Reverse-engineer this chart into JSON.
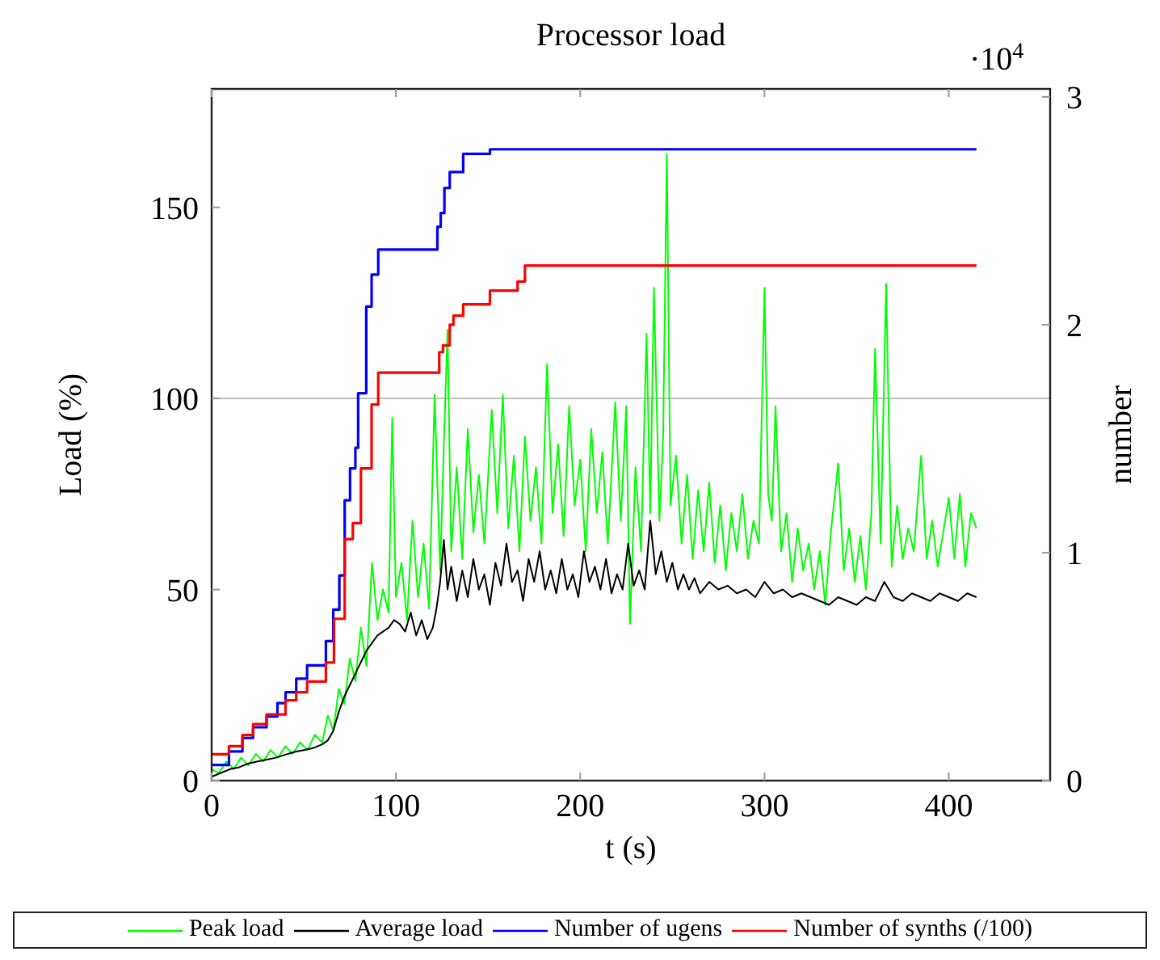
{
  "chart_data": {
    "type": "line",
    "title": "Processor load",
    "xlabel": "t (s)",
    "ylabel": "Load (%)",
    "y2label": "number",
    "annotations": [
      "·10$^{4}$"
    ],
    "xlim": [
      0,
      455
    ],
    "xticks": [
      0,
      100,
      200,
      300,
      400
    ],
    "ylim": [
      0,
      181
    ],
    "yticks": [
      0,
      50,
      100,
      150
    ],
    "y2lim": [
      0,
      3.035
    ],
    "y2ticks": [
      0,
      1,
      2,
      3
    ],
    "grid": false,
    "legend": "bottom",
    "marker": "none",
    "line_style": "solid",
    "ref_lines": [
      {
        "axis": "y",
        "value": 100,
        "label": null,
        "color": "#bfbfbf"
      }
    ],
    "series": [
      {
        "name": "Peak load",
        "color": "#00ff00",
        "x": [
          0,
          4,
          8,
          12,
          16,
          20,
          24,
          28,
          32,
          36,
          40,
          44,
          48,
          52,
          56,
          60,
          63,
          66,
          69,
          72,
          75,
          78,
          81,
          84,
          87,
          90,
          93,
          96,
          98,
          100,
          103,
          106,
          109,
          112,
          115,
          118,
          121,
          124,
          126,
          128,
          130,
          133,
          136,
          139,
          142,
          145,
          148,
          152,
          155,
          158,
          161,
          164,
          167,
          170,
          173,
          176,
          179,
          182,
          185,
          188,
          191,
          194,
          197,
          200,
          203,
          206,
          209,
          212,
          215,
          219,
          222,
          225,
          227,
          230,
          233,
          236,
          238,
          240,
          243,
          245,
          247,
          249,
          252,
          255,
          258,
          261,
          264,
          267,
          270,
          273,
          276,
          279,
          282,
          285,
          288,
          291,
          294,
          297,
          300,
          302,
          304,
          306,
          309,
          312,
          315,
          318,
          321,
          324,
          327,
          330,
          333,
          336,
          340,
          343,
          346,
          349,
          352,
          355,
          358,
          360,
          363,
          366,
          369,
          372,
          375,
          378,
          381,
          385,
          388,
          391,
          394,
          400,
          403,
          406,
          409,
          412,
          415
        ],
        "values": [
          3,
          2,
          5,
          3,
          6,
          4,
          7,
          5,
          8,
          6,
          9,
          7,
          10,
          8,
          12,
          10,
          17,
          13,
          24,
          20,
          32,
          26,
          40,
          30,
          57,
          42,
          50,
          44,
          95,
          48,
          57,
          42,
          68,
          48,
          62,
          45,
          101,
          55,
          88,
          118,
          60,
          82,
          58,
          92,
          65,
          80,
          62,
          97,
          70,
          101,
          66,
          85,
          60,
          90,
          68,
          82,
          62,
          109,
          70,
          88,
          64,
          98,
          72,
          84,
          60,
          92,
          70,
          86,
          62,
          99,
          68,
          98,
          41,
          82,
          60,
          117,
          70,
          129,
          68,
          90,
          164,
          72,
          85,
          62,
          80,
          58,
          76,
          60,
          78,
          57,
          72,
          55,
          70,
          60,
          75,
          58,
          68,
          62,
          129,
          75,
          68,
          98,
          60,
          70,
          52,
          66,
          55,
          62,
          50,
          60,
          46,
          65,
          83,
          55,
          66,
          52,
          64,
          50,
          70,
          113,
          62,
          130,
          56,
          72,
          58,
          66,
          60,
          85,
          58,
          68,
          56,
          74,
          58,
          75,
          56,
          70,
          66
        ]
      },
      {
        "name": "Average load",
        "color": "#000000",
        "x": [
          0,
          5,
          10,
          15,
          20,
          25,
          30,
          35,
          40,
          45,
          50,
          55,
          60,
          63,
          66,
          69,
          72,
          75,
          78,
          81,
          84,
          87,
          90,
          93,
          96,
          99,
          102,
          105,
          108,
          111,
          114,
          117,
          120,
          122,
          124,
          126,
          128,
          130,
          133,
          136,
          139,
          142,
          145,
          148,
          151,
          154,
          157,
          160,
          163,
          166,
          169,
          172,
          175,
          178,
          181,
          184,
          187,
          190,
          193,
          196,
          199,
          202,
          205,
          208,
          211,
          214,
          217,
          220,
          223,
          226,
          229,
          232,
          235,
          238,
          241,
          244,
          247,
          250,
          253,
          256,
          259,
          262,
          265,
          270,
          275,
          280,
          285,
          290,
          295,
          300,
          305,
          310,
          315,
          320,
          325,
          330,
          335,
          340,
          345,
          350,
          355,
          360,
          365,
          370,
          375,
          380,
          385,
          390,
          395,
          400,
          405,
          410,
          415
        ],
        "values": [
          1,
          2,
          3,
          3.5,
          4.5,
          5,
          5.5,
          6,
          6.8,
          7.5,
          8,
          8.5,
          9.5,
          10.5,
          13,
          18,
          22,
          25,
          28,
          31,
          34,
          36,
          38,
          39,
          40,
          42,
          41,
          39,
          44,
          38,
          42,
          37,
          40,
          45,
          52,
          63,
          50,
          56,
          47,
          55,
          48,
          58,
          50,
          54,
          46,
          57,
          51,
          62,
          52,
          55,
          47,
          58,
          52,
          60,
          50,
          55,
          49,
          58,
          50,
          54,
          48,
          60,
          52,
          56,
          50,
          58,
          49,
          54,
          50,
          62,
          51,
          55,
          50,
          68,
          54,
          60,
          52,
          57,
          50,
          54,
          50,
          53,
          49,
          52,
          50,
          51,
          49,
          50,
          48,
          52,
          49,
          50,
          48,
          49,
          48,
          47,
          46,
          48,
          47,
          46,
          48,
          47,
          52,
          48,
          47,
          49,
          48,
          47,
          49,
          48,
          47,
          49,
          48
        ]
      },
      {
        "name": "Number of ugens",
        "color": "#0000ff",
        "type": "step",
        "axis": "y2",
        "x": [
          0,
          9.4,
          16.7,
          22.5,
          29.8,
          35.7,
          40.1,
          45.9,
          51.8,
          62,
          66,
          69.3,
          72.2,
          75.1,
          78,
          79.5,
          83.9,
          86.8,
          90.4,
          122.5,
          124.3,
          126.3,
          129.2,
          136.5,
          151,
          166,
          170,
          415
        ],
        "values": [
          0.069,
          0.128,
          0.187,
          0.234,
          0.281,
          0.34,
          0.388,
          0.447,
          0.506,
          0.612,
          0.75,
          0.9,
          1.23,
          1.37,
          1.46,
          1.7,
          2.08,
          2.22,
          2.33,
          2.43,
          2.49,
          2.6,
          2.67,
          2.75,
          2.77,
          2.77,
          2.77,
          2.77
        ]
      },
      {
        "name": "Number of synths (/100)",
        "color": "#ff0000",
        "type": "step",
        "axis": "y2",
        "x": [
          0,
          9.4,
          16.7,
          22.5,
          29.8,
          40.1,
          45.9,
          51.8,
          62,
          66.4,
          72.2,
          76.6,
          81,
          86.8,
          90.4,
          123.5,
          125.5,
          129.2,
          131.2,
          136.5,
          151,
          166,
          170,
          415
        ],
        "values": [
          0.116,
          0.151,
          0.2,
          0.248,
          0.29,
          0.352,
          0.388,
          0.435,
          0.518,
          0.71,
          1.06,
          1.13,
          1.37,
          1.65,
          1.79,
          1.88,
          1.91,
          2,
          2.04,
          2.09,
          2.15,
          2.19,
          2.26,
          2.26
        ]
      }
    ]
  }
}
